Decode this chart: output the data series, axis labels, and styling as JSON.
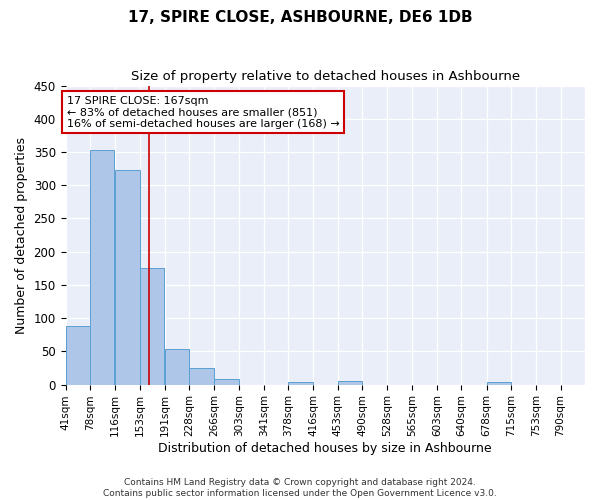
{
  "title": "17, SPIRE CLOSE, ASHBOURNE, DE6 1DB",
  "subtitle": "Size of property relative to detached houses in Ashbourne",
  "xlabel": "Distribution of detached houses by size in Ashbourne",
  "ylabel": "Number of detached properties",
  "bar_values": [
    88,
    353,
    323,
    175,
    53,
    25,
    8,
    0,
    0,
    4,
    0,
    5,
    0,
    0,
    0,
    0,
    0,
    4,
    0,
    0,
    0
  ],
  "bar_left_edges": [
    41,
    78,
    116,
    153,
    191,
    228,
    266,
    303,
    341,
    378,
    416,
    453,
    490,
    528,
    565,
    603,
    640,
    678,
    715,
    753,
    790
  ],
  "bin_width": 37,
  "x_tick_labels": [
    "41sqm",
    "78sqm",
    "116sqm",
    "153sqm",
    "191sqm",
    "228sqm",
    "266sqm",
    "303sqm",
    "341sqm",
    "378sqm",
    "416sqm",
    "453sqm",
    "490sqm",
    "528sqm",
    "565sqm",
    "603sqm",
    "640sqm",
    "678sqm",
    "715sqm",
    "753sqm",
    "790sqm"
  ],
  "bar_color": "#aec6e8",
  "bar_edge_color": "#5a9fd4",
  "red_line_x": 167,
  "annotation_line1": "17 SPIRE CLOSE: 167sqm",
  "annotation_line2": "← 83% of detached houses are smaller (851)",
  "annotation_line3": "16% of semi-detached houses are larger (168) →",
  "annotation_box_color": "#ffffff",
  "annotation_box_edge_color": "#cc0000",
  "ylim": [
    0,
    450
  ],
  "yticks": [
    0,
    50,
    100,
    150,
    200,
    250,
    300,
    350,
    400,
    450
  ],
  "background_color": "#eaeef8",
  "grid_color": "#ffffff",
  "footer_text": "Contains HM Land Registry data © Crown copyright and database right 2024.\nContains public sector information licensed under the Open Government Licence v3.0.",
  "title_fontsize": 11,
  "subtitle_fontsize": 9.5,
  "tick_fontsize": 7.5,
  "ylabel_fontsize": 9,
  "xlabel_fontsize": 9
}
